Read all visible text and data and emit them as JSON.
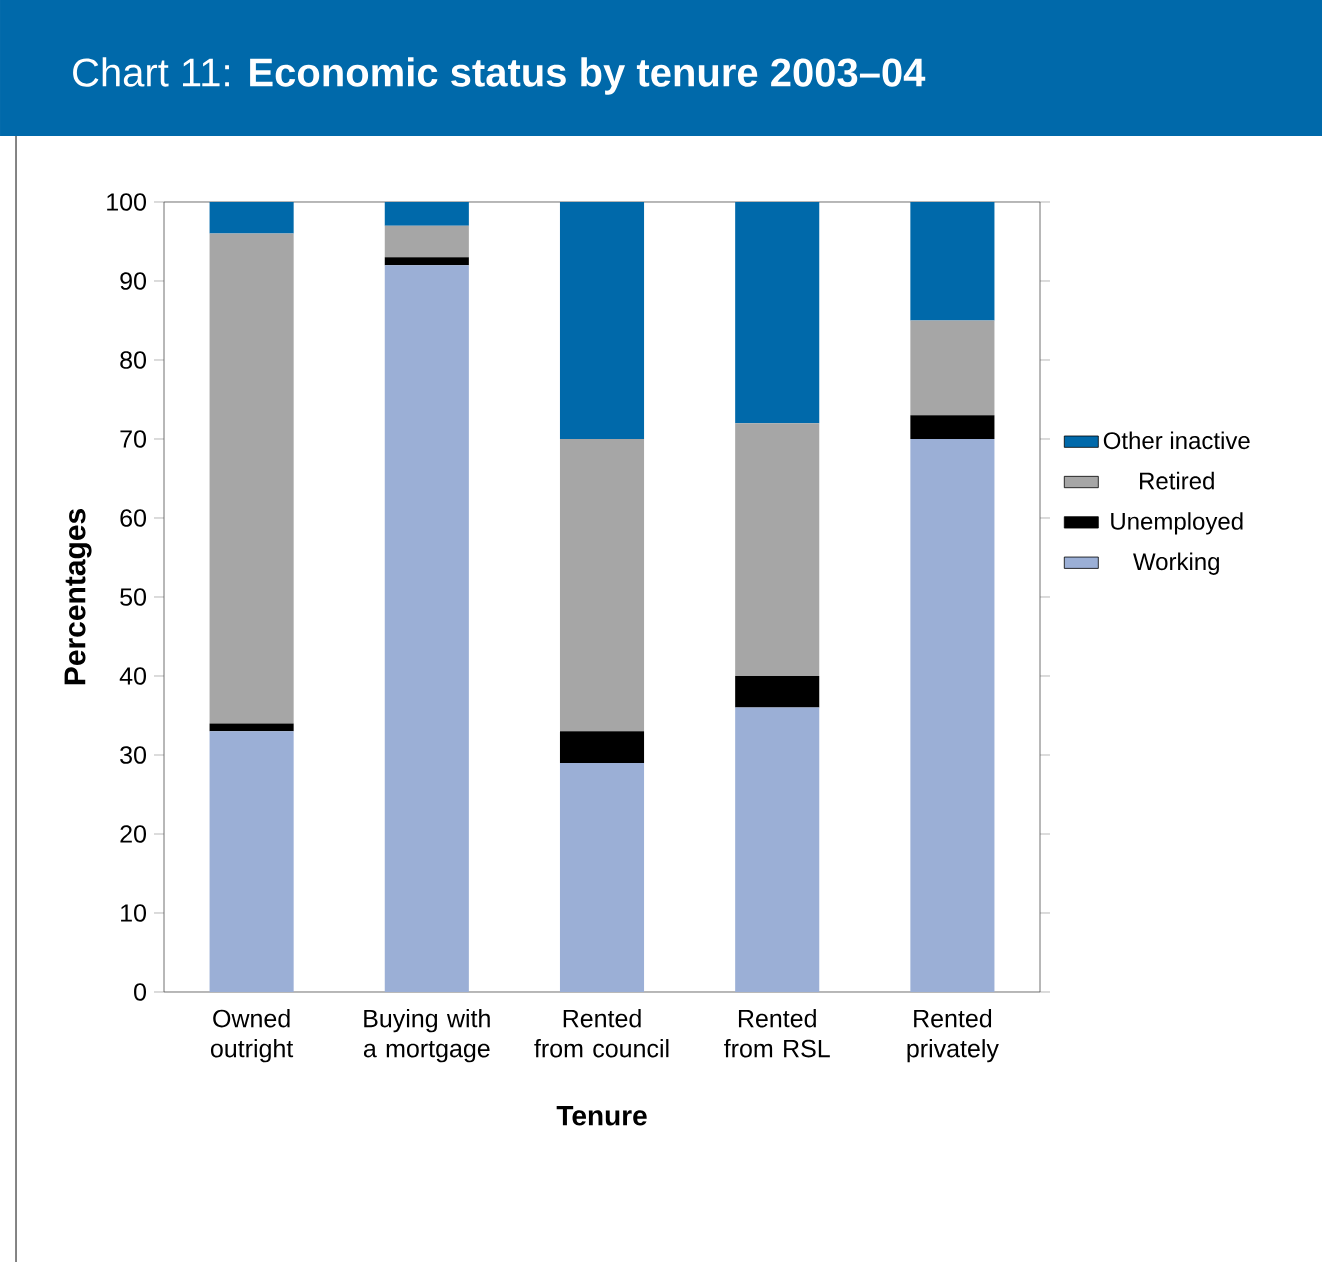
{
  "chart_data": {
    "type": "bar",
    "title": "Chart 11: **Economic status by tenure 2003–04**",
    "xlabel": "Tenure",
    "ylabel": "Percentages",
    "categories": [
      "Owned outright",
      "Buying with a mortgage",
      "Rented from council",
      "Rented from RSL",
      "Rented privately"
    ],
    "stacked": true,
    "series": [
      {
        "name": "Working",
        "color": "#9bafd6",
        "values": [
          33,
          92,
          29,
          36,
          70
        ]
      },
      {
        "name": "Unemployed",
        "color": "#000000",
        "values": [
          1,
          1,
          4,
          4,
          3
        ]
      },
      {
        "name": "Retired",
        "color": "#a6a6a6",
        "values": [
          62,
          4,
          37,
          32,
          12
        ]
      },
      {
        "name": "Other inactive",
        "color": "#0069aa",
        "values": [
          4,
          3,
          30,
          28,
          15
        ]
      }
    ],
    "ylim": [
      0,
      100
    ],
    "yticks": [
      0,
      10,
      20,
      30,
      40,
      50,
      60,
      70,
      80,
      90,
      100
    ],
    "legend": "right"
  }
}
